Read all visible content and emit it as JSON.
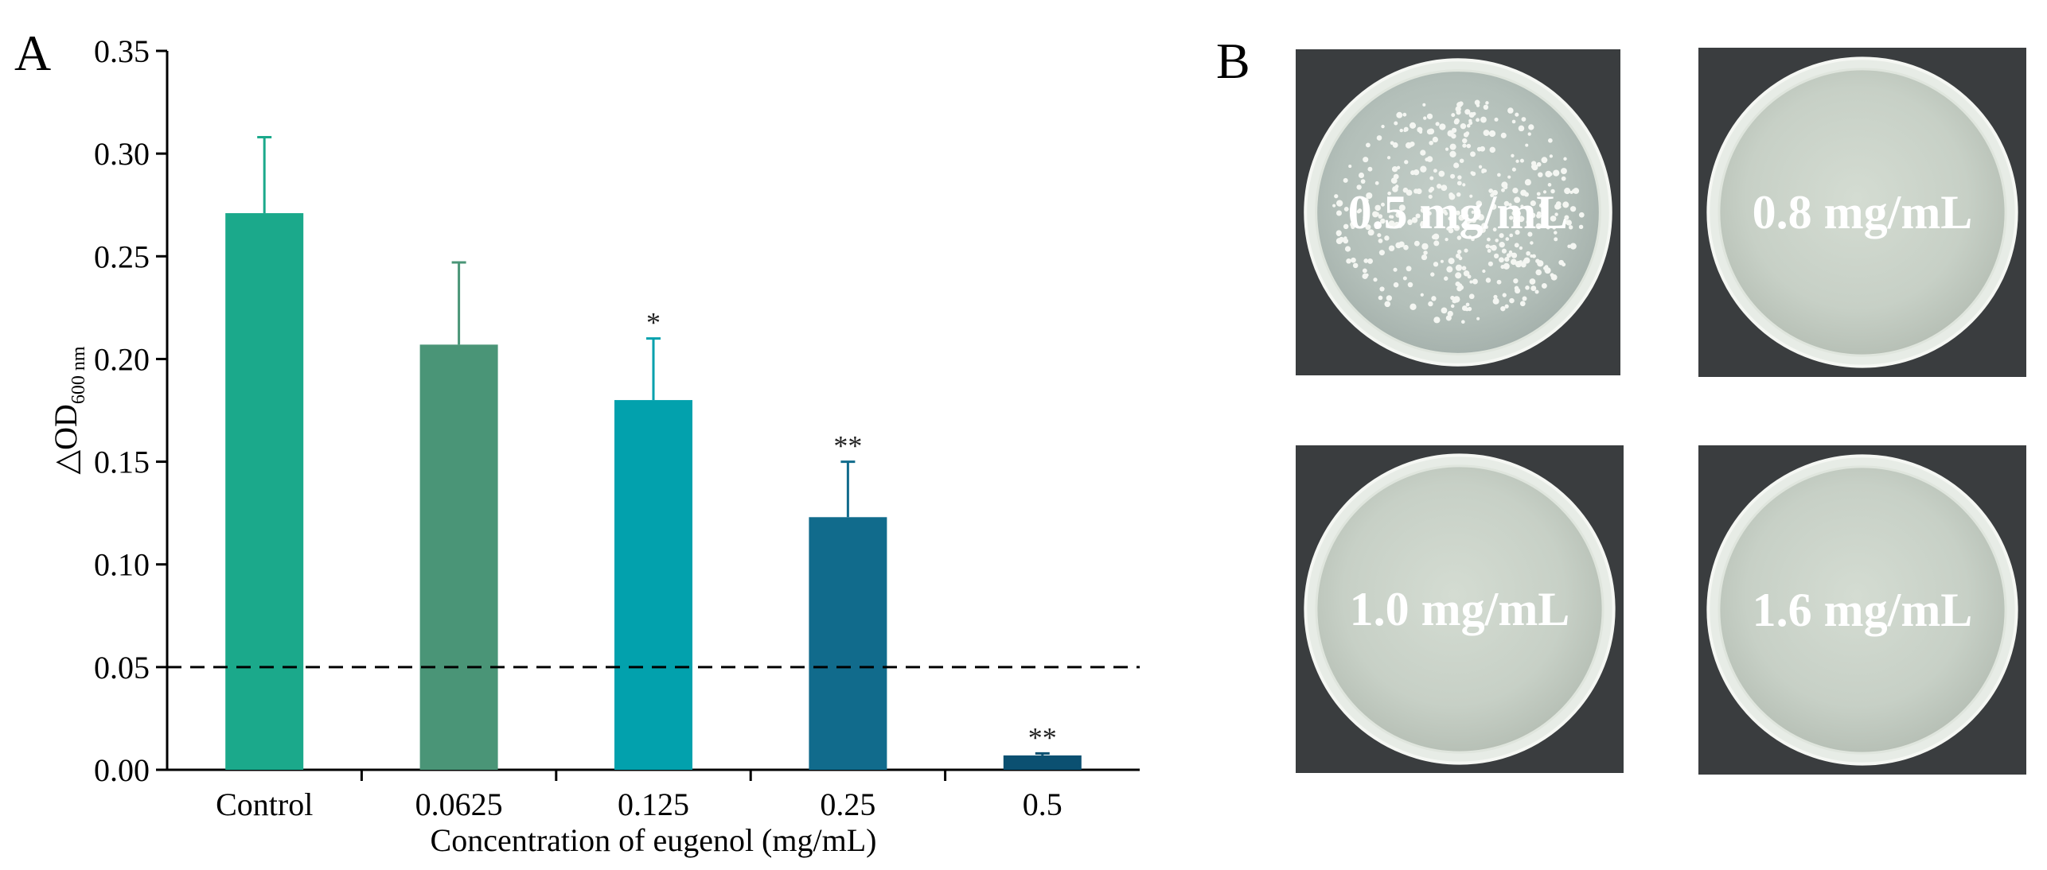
{
  "panels": {
    "a": "A",
    "b": "B"
  },
  "chart_data": {
    "type": "bar",
    "title": "",
    "xlabel": "Concentration of eugenol (mg/mL)",
    "ylabel": {
      "main": "△OD",
      "subscript": "600 nm"
    },
    "categories": [
      "Control",
      "0.0625",
      "0.125",
      "0.25",
      "0.5"
    ],
    "values": [
      0.271,
      0.207,
      0.18,
      0.123,
      0.007
    ],
    "errors": [
      0.037,
      0.04,
      0.03,
      0.027,
      0.001
    ],
    "significance": [
      "",
      "",
      "*",
      "**",
      "**"
    ],
    "colors": [
      "#1ba98b",
      "#4a9577",
      "#02a1ad",
      "#116b8c",
      "#0b5071"
    ],
    "ylim": [
      0,
      0.35
    ],
    "yticks": [
      "0.00",
      "0.05",
      "0.10",
      "0.15",
      "0.20",
      "0.25",
      "0.30",
      "0.35"
    ],
    "reference_line": {
      "y": 0.05,
      "style": "dashed"
    },
    "grid": false,
    "legend": "none"
  },
  "plates": [
    {
      "label": "0.5 mg/mL",
      "colonies": true
    },
    {
      "label": "0.8 mg/mL",
      "colonies": false
    },
    {
      "label": "1.0 mg/mL",
      "colonies": false
    },
    {
      "label": "1.6 mg/mL",
      "colonies": false
    }
  ]
}
